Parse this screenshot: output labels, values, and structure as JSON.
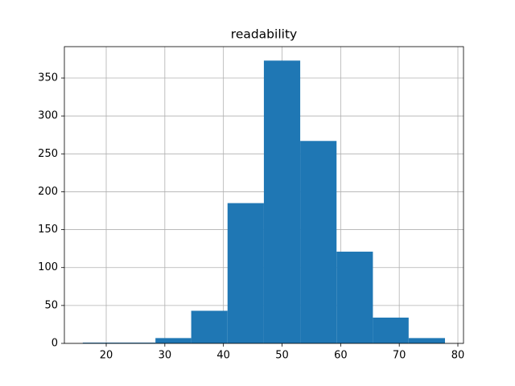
{
  "chart_data": {
    "type": "histogram",
    "title": "readability",
    "bins": [
      16.0,
      22.2,
      28.4,
      34.5,
      40.7,
      46.9,
      53.1,
      59.3,
      65.5,
      71.6,
      77.8
    ],
    "counts": [
      1,
      1,
      7,
      43,
      185,
      373,
      267,
      121,
      34,
      7
    ],
    "color": "#1f77b4",
    "xlim": [
      12.86,
      80.96
    ],
    "xticks": [
      20,
      30,
      40,
      50,
      60,
      70,
      80
    ],
    "ylim": [
      0,
      391.4
    ],
    "yticks": [
      0,
      50,
      100,
      150,
      200,
      250,
      300,
      350
    ],
    "grid": true
  }
}
